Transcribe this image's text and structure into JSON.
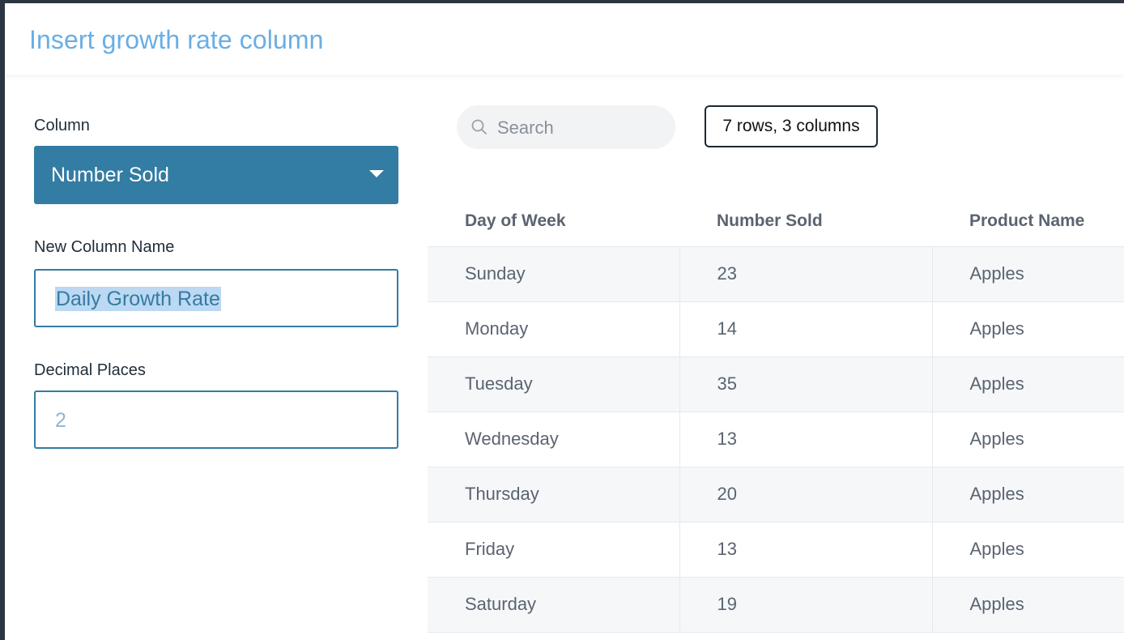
{
  "modal": {
    "title": "Insert growth rate column"
  },
  "form": {
    "column_label": "Column",
    "column_value": "Number Sold",
    "new_name_label": "New Column Name",
    "new_name_value": "Daily Growth Rate",
    "decimal_label": "Decimal Places",
    "decimal_placeholder": "2"
  },
  "toolbar": {
    "search_placeholder": "Search",
    "row_count": "7 rows, 3 columns"
  },
  "table": {
    "headers": [
      "Day of Week",
      "Number Sold",
      "Product Name"
    ],
    "rows": [
      [
        "Sunday",
        "23",
        "Apples"
      ],
      [
        "Monday",
        "14",
        "Apples"
      ],
      [
        "Tuesday",
        "35",
        "Apples"
      ],
      [
        "Wednesday",
        "13",
        "Apples"
      ],
      [
        "Thursday",
        "20",
        "Apples"
      ],
      [
        "Friday",
        "13",
        "Apples"
      ],
      [
        "Saturday",
        "19",
        "Apples"
      ]
    ]
  },
  "colors": {
    "accent": "#337ca3",
    "title": "#6aaee4",
    "selection": "#bcd8f2"
  },
  "icons": {
    "search": "search-icon",
    "dropdown": "caret-down-icon"
  }
}
